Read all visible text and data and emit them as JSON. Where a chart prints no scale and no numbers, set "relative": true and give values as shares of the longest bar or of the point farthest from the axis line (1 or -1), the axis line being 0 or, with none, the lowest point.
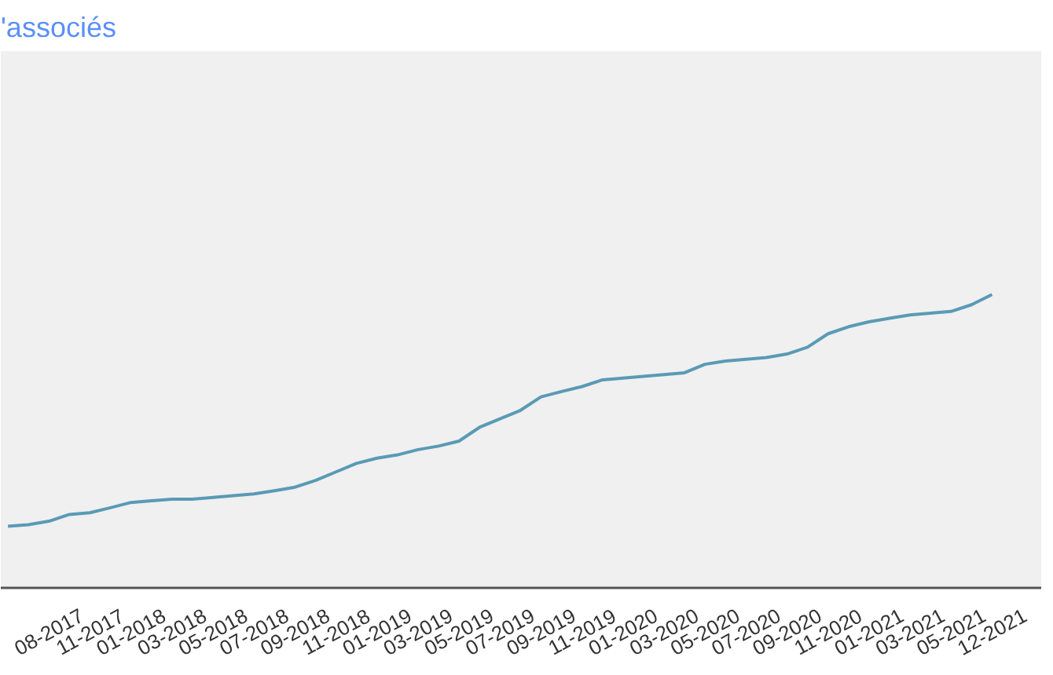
{
  "chart_data": {
    "type": "line",
    "title": "'associés",
    "relative": true,
    "grid": false,
    "marker": "none",
    "line_style": "solid",
    "categories": [
      null,
      null,
      "08-2017",
      null,
      "11-2017",
      null,
      "01-2018",
      null,
      "03-2018",
      null,
      "05-2018",
      null,
      "07-2018",
      null,
      "09-2018",
      null,
      "11-2018",
      null,
      "01-2019",
      null,
      "03-2019",
      null,
      "05-2019",
      null,
      "07-2019",
      null,
      "09-2019",
      null,
      "11-2019",
      null,
      "01-2020",
      null,
      "03-2020",
      null,
      "05-2020",
      null,
      "07-2020",
      null,
      "09-2020",
      null,
      "11-2020",
      null,
      "01-2021",
      null,
      "03-2021",
      null,
      "05-2021",
      null,
      "12-2021"
    ],
    "series": [
      {
        "color": "#5a9ab5",
        "values": [
          0.21,
          0.215,
          0.227,
          0.25,
          0.256,
          0.273,
          0.291,
          0.297,
          0.302,
          0.302,
          0.308,
          0.314,
          0.32,
          0.331,
          0.343,
          0.366,
          0.395,
          0.424,
          0.442,
          0.453,
          0.471,
          0.483,
          0.5,
          0.547,
          0.576,
          0.605,
          0.651,
          0.669,
          0.686,
          0.709,
          0.715,
          0.721,
          0.727,
          0.733,
          0.762,
          0.773,
          0.779,
          0.785,
          0.797,
          0.82,
          0.866,
          0.89,
          0.907,
          0.919,
          0.93,
          0.936,
          0.942,
          0.965,
          1.0
        ]
      }
    ]
  }
}
